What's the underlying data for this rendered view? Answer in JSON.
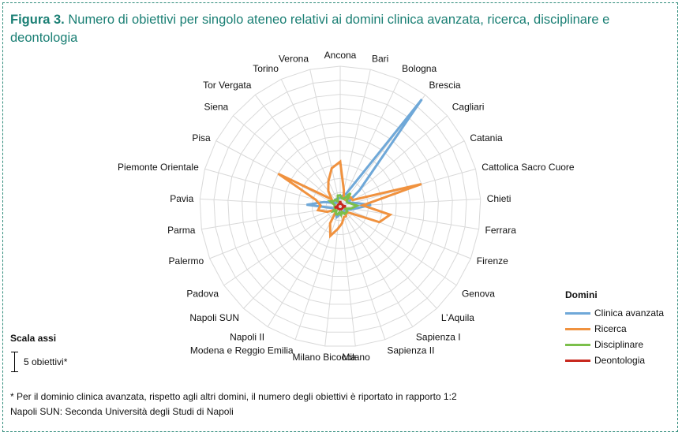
{
  "title": {
    "figure": "Figura 3.",
    "text": " Numero di obiettivi per singolo ateneo relativi ai domini clinica avanzata, ricerca, disciplinare e deontologia"
  },
  "scale": {
    "label": "Scala assi",
    "unit": "5 obiettivi*"
  },
  "footnotes": {
    "line1": "* Per il dominio clinica avanzata, rispetto agli altri domini, il numero degli obiettivi è riportato in rapporto 1:2",
    "line2": "Napoli SUN: Seconda Università degli Studi di Napoli"
  },
  "legend": {
    "title": "Domini"
  },
  "chart_data": {
    "type": "radar",
    "title": "",
    "categories": [
      "Ancona",
      "Bari",
      "Bologna",
      "Brescia",
      "Cagliari",
      "Catania",
      "Cattolica Sacro Cuore",
      "Chieti",
      "Ferrara",
      "Firenze",
      "Genova",
      "L’Aquila",
      "Sapienza I",
      "Sapienza II",
      "Milano",
      "Milano Bicocca",
      "Modena e Reggio Emilia",
      "Napoli II",
      "Napoli SUN",
      "Padova",
      "Palermo",
      "Parma",
      "Pavia",
      "Piemonte Orientale",
      "Pisa",
      "Siena",
      "Tor Vergata",
      "Torino",
      "Verona"
    ],
    "rmax": 50,
    "grid_step": 5,
    "grid": true,
    "legend_position": "bottom-right",
    "series": [
      {
        "name": "Clinica avanzata",
        "color": "#6fa8d8",
        "values": [
          3,
          4,
          5,
          48,
          9,
          3,
          5,
          11,
          5,
          3,
          2,
          2,
          3,
          2,
          2,
          3,
          4,
          3,
          2,
          2,
          2,
          3,
          12,
          6,
          3,
          2,
          2,
          3,
          3
        ]
      },
      {
        "name": "Ricerca",
        "color": "#f0923f",
        "values": [
          16,
          6,
          3,
          3,
          5,
          5,
          30,
          8,
          18,
          15,
          4,
          3,
          4,
          4,
          6,
          8,
          11,
          7,
          2,
          2,
          5,
          8,
          7,
          9,
          25,
          4,
          7,
          10,
          14
        ]
      },
      {
        "name": "Disciplinare",
        "color": "#7bbf4b",
        "values": [
          4,
          3,
          3,
          6,
          3,
          3,
          4,
          6,
          4,
          2,
          3,
          3,
          3,
          2,
          3,
          2,
          3,
          3,
          2,
          3,
          2,
          2,
          2,
          2,
          4,
          3,
          3,
          2,
          4
        ]
      },
      {
        "name": "Deontologia",
        "color": "#c8281e",
        "values": [
          2,
          1,
          1,
          1,
          1,
          1,
          1,
          2,
          1,
          1,
          1,
          1,
          1,
          1,
          1,
          1,
          1,
          1,
          1,
          1,
          1,
          2,
          1,
          1,
          1,
          1,
          1,
          1,
          1
        ]
      }
    ]
  }
}
